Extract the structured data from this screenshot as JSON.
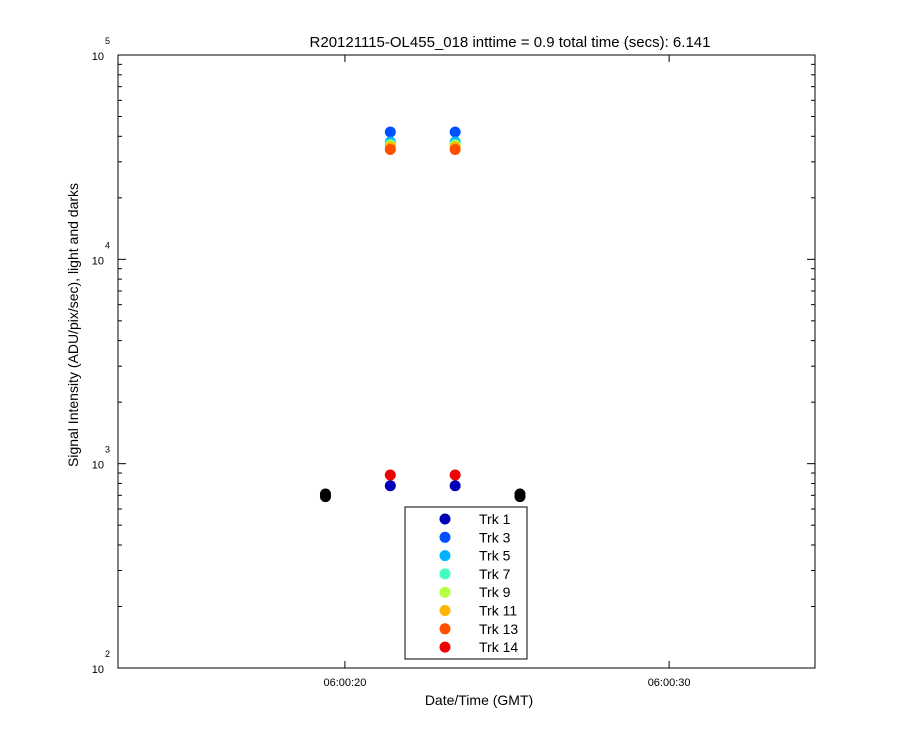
{
  "chart_data": {
    "type": "scatter",
    "title": "R20121115-OL455_018 inttime = 0.9 total time (secs): 6.141",
    "xlabel": "Date/Time (GMT)",
    "ylabel": "Signal Intensity (ADU/pix/sec), light and darks",
    "yscale": "log",
    "ylim": [
      100,
      100000
    ],
    "xlim": [
      "06:00:13",
      "06:00:34.5"
    ],
    "x_ticks": [
      "06:00:20",
      "06:00:30"
    ],
    "y_ticks": [
      {
        "base": "10",
        "exp": "2",
        "value": 100
      },
      {
        "base": "10",
        "exp": "3",
        "value": 1000
      },
      {
        "base": "10",
        "exp": "4",
        "value": 10000
      },
      {
        "base": "10",
        "exp": "5",
        "value": 100000
      }
    ],
    "legend_position": "bottom-center",
    "series": [
      {
        "name": "Trk 1",
        "color": "#0000b4",
        "points": [
          [
            "06:00:21.4",
            780
          ],
          [
            "06:00:23.4",
            780
          ]
        ]
      },
      {
        "name": "Trk 3",
        "color": "#0050ff",
        "points": [
          [
            "06:00:21.4",
            42000
          ],
          [
            "06:00:23.4",
            42000
          ]
        ]
      },
      {
        "name": "Trk 5",
        "color": "#00b4ff",
        "points": [
          [
            "06:00:21.4",
            37500
          ],
          [
            "06:00:23.4",
            37500
          ]
        ]
      },
      {
        "name": "Trk 7",
        "color": "#40ffc0",
        "points": [
          [
            "06:00:21.4",
            36500
          ],
          [
            "06:00:23.4",
            36500
          ]
        ]
      },
      {
        "name": "Trk 9",
        "color": "#b4ff40",
        "points": [
          [
            "06:00:21.4",
            36000
          ],
          [
            "06:00:23.4",
            36000
          ]
        ]
      },
      {
        "name": "Trk 11",
        "color": "#ffb400",
        "points": [
          [
            "06:00:21.4",
            35500
          ],
          [
            "06:00:23.4",
            35500
          ]
        ]
      },
      {
        "name": "Trk 13",
        "color": "#ff5000",
        "points": [
          [
            "06:00:21.4",
            34500
          ],
          [
            "06:00:23.4",
            34500
          ]
        ]
      },
      {
        "name": "Trk 14",
        "color": "#f00000",
        "points": [
          [
            "06:00:21.4",
            880
          ],
          [
            "06:00:23.4",
            880
          ]
        ]
      }
    ],
    "dark_points": {
      "color": "#000000",
      "points": [
        [
          "06:00:19.4",
          690
        ],
        [
          "06:00:19.4",
          710
        ],
        [
          "06:00:25.4",
          690
        ],
        [
          "06:00:25.4",
          710
        ]
      ]
    }
  }
}
